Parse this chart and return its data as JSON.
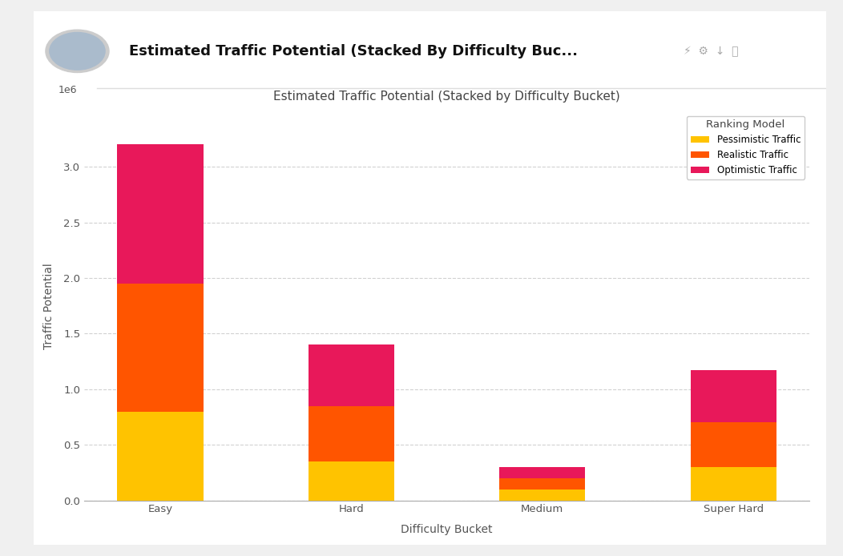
{
  "categories": [
    "Easy",
    "Hard",
    "Medium",
    "Super Hard"
  ],
  "pessimistic": [
    800000,
    350000,
    100000,
    300000
  ],
  "realistic_increment": [
    1150000,
    500000,
    100000,
    400000
  ],
  "optimistic_increment": [
    1250000,
    550000,
    100000,
    475000
  ],
  "colors": {
    "pessimistic": "#FFC300",
    "realistic": "#FF5500",
    "optimistic": "#E8185A"
  },
  "title": "Estimated Traffic Potential (Stacked by Difficulty Bucket)",
  "header_title": "Estimated Traffic Potential (Stacked By Difficulty Buc...",
  "xlabel": "Difficulty Bucket",
  "ylabel": "Traffic Potential",
  "legend_title": "Ranking Model",
  "legend_labels": [
    "Pessimistic Traffic",
    "Realistic Traffic",
    "Optimistic Traffic"
  ],
  "ylim": [
    0,
    3500000
  ],
  "yticks": [
    0.0,
    0.5,
    1.0,
    1.5,
    2.0,
    2.5,
    3.0
  ],
  "background_color": "#f0f0f0",
  "card_color": "#ffffff",
  "bar_width": 0.45,
  "figsize": [
    10.52,
    6.94
  ],
  "dpi": 100
}
